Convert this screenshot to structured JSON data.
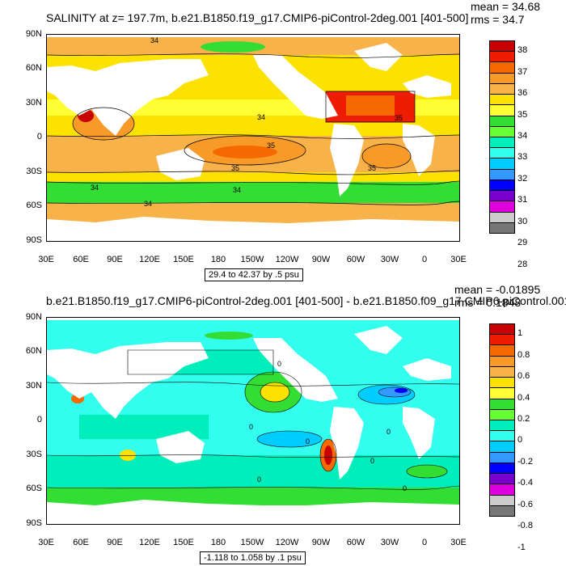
{
  "panel1": {
    "title": "SALINITY at z= 197.7m, b.e21.B1850.f19_g17.CMIP6-piControl-2deg.001 [401-500]",
    "mean": "mean = 34.68",
    "rms": "rms = 34.7",
    "range": "29.4 to 42.37 by .5 psu",
    "contour_labels": [
      "34",
      "34",
      "35",
      "35",
      "35",
      "34",
      "34",
      "34",
      "35"
    ],
    "colorbar": {
      "labels": [
        "38",
        "37",
        "36",
        "35",
        "34",
        "33",
        "32",
        "31",
        "30",
        "29",
        "28"
      ],
      "colors": [
        "#c80000",
        "#ee1c00",
        "#f46a00",
        "#f79a28",
        "#f7b24a",
        "#fbe200",
        "#ffff33",
        "#33dd33",
        "#66ff33",
        "#00eebb",
        "#33ffee",
        "#00ccff",
        "#3399ff",
        "#0000ff",
        "#7700cc",
        "#dd00dd",
        "#cccccc",
        "#777777"
      ]
    }
  },
  "panel2": {
    "title": "b.e21.B1850.f19_g17.CMIP6-piControl-2deg.001 [401-500] - b.e21.B1850.f09_g17.CMIP6-piControl.001",
    "mean": "mean = -0.01895",
    "rms": "rms = 0.1848",
    "range": "-1.118 to 1.058 by .1 psu",
    "contour_labels": [
      "0",
      "0",
      "0",
      "0",
      "0",
      "0",
      "0"
    ],
    "colorbar": {
      "labels": [
        "1",
        "0.8",
        "0.6",
        "0.4",
        "0.2",
        "0",
        "-0.2",
        "-0.4",
        "-0.6",
        "-0.8",
        "-1"
      ],
      "colors": [
        "#c80000",
        "#ee1c00",
        "#f46a00",
        "#f79a28",
        "#f7b24a",
        "#fbe200",
        "#ffff33",
        "#33dd33",
        "#66ff33",
        "#00eebb",
        "#33ffee",
        "#00ccff",
        "#3399ff",
        "#0000ff",
        "#7700cc",
        "#dd00dd",
        "#cccccc",
        "#777777"
      ]
    }
  },
  "axes": {
    "lat_labels": [
      "90N",
      "60N",
      "30N",
      "0",
      "30S",
      "60S",
      "90S"
    ],
    "lon_labels": [
      "30E",
      "60E",
      "90E",
      "120E",
      "150E",
      "180",
      "150W",
      "120W",
      "90W",
      "60W",
      "30W",
      "0",
      "30E"
    ]
  }
}
